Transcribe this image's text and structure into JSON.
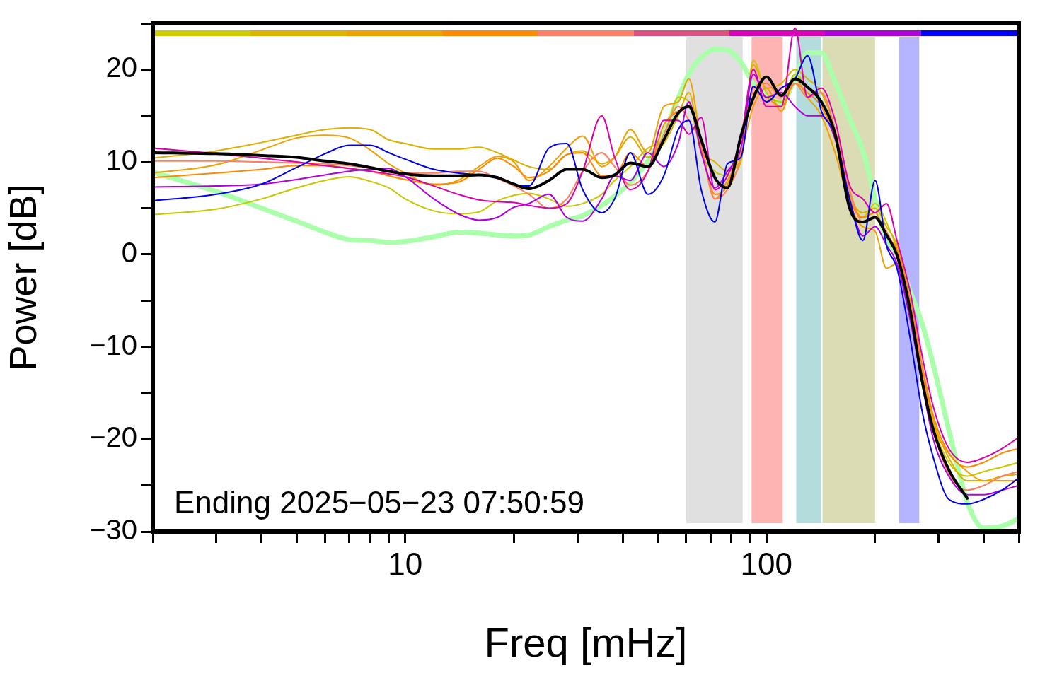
{
  "chart_data": {
    "type": "line",
    "xlabel": "Freq [mHz]",
    "ylabel": "Power [dB]",
    "log": "x",
    "grid": false,
    "legend": false,
    "marker": "none",
    "line_style": "solid",
    "xlim": [
      2,
      500
    ],
    "ylim": [
      -30,
      25
    ],
    "xticks": [
      {
        "value": 2,
        "label": null
      },
      {
        "value": 3,
        "label": null
      },
      {
        "value": 4,
        "label": null
      },
      {
        "value": 5,
        "label": null
      },
      {
        "value": 6,
        "label": null
      },
      {
        "value": 7,
        "label": null
      },
      {
        "value": 8,
        "label": null
      },
      {
        "value": 9,
        "label": null
      },
      10,
      {
        "value": 20,
        "label": null
      },
      {
        "value": 30,
        "label": null
      },
      {
        "value": 40,
        "label": null
      },
      {
        "value": 50,
        "label": null
      },
      {
        "value": 60,
        "label": null
      },
      {
        "value": 70,
        "label": null
      },
      {
        "value": 80,
        "label": null
      },
      {
        "value": 90,
        "label": null
      },
      100,
      {
        "value": 200,
        "label": null
      },
      {
        "value": 300,
        "label": null
      },
      {
        "value": 400,
        "label": null
      },
      {
        "value": 500,
        "label": null
      }
    ],
    "yticks": [
      {
        "value": -30,
        "label": "−30"
      },
      {
        "value": -25,
        "label": null
      },
      {
        "value": -20,
        "label": "−20"
      },
      {
        "value": -15,
        "label": null
      },
      {
        "value": -10,
        "label": "−10"
      },
      {
        "value": -5,
        "label": null
      },
      0,
      {
        "value": 5,
        "label": null
      },
      10,
      {
        "value": 15,
        "label": null
      },
      20,
      {
        "value": 25,
        "label": null
      }
    ],
    "x": [
      2,
      3,
      4,
      5,
      6,
      7,
      8,
      9,
      10,
      12,
      14,
      16,
      18,
      20,
      22,
      25,
      28,
      31,
      35,
      38,
      42,
      47,
      52,
      57,
      61,
      66,
      72,
      78,
      85,
      92,
      100,
      110,
      120,
      130,
      142,
      155,
      170,
      185,
      200,
      215,
      230,
      250,
      270,
      290,
      320,
      360,
      400,
      450,
      500
    ],
    "bands": [
      {
        "axis": "x",
        "from": 60,
        "to": 86,
        "color": "#e0e0e0"
      },
      {
        "axis": "x",
        "from": 91,
        "to": 111,
        "color": "#ffb4b4"
      },
      {
        "axis": "x",
        "from": 121,
        "to": 142,
        "color": "#b4dcdc"
      },
      {
        "axis": "x",
        "from": 143,
        "to": 200,
        "color": "#dcdcb4"
      },
      {
        "axis": "x",
        "from": 233,
        "to": 265,
        "color": "#b4b4ff"
      }
    ],
    "annotations": [
      "Ending 2025−05−23 07:50:59"
    ],
    "series": [
      {
        "color": "#aaffaa",
        "values": [
          8.9,
          6.8,
          5.0,
          3.6,
          2.4,
          1.6,
          1.5,
          1.3,
          1.4,
          1.9,
          2.4,
          2.3,
          2.1,
          2.0,
          2.1,
          3.0,
          3.7,
          4.2,
          5.3,
          6.3,
          7.8,
          10.1,
          13.1,
          16.9,
          19.5,
          21.3,
          22.2,
          22.1,
          20.8,
          18.5,
          17.2,
          16.4,
          19.0,
          21.8,
          21.8,
          18.6,
          14.7,
          11.2,
          6.0,
          1.5,
          0,
          -4,
          -7.5,
          -12,
          -19,
          -26.8,
          -29.6,
          -29.4,
          -28.6
        ]
      },
      {
        "color": "#c8c800",
        "values": [
          4.3,
          4.9,
          6.0,
          7.2,
          8.0,
          8.4,
          7.9,
          7.2,
          6.0,
          4.7,
          4.4,
          4.6,
          5.8,
          6.4,
          6.6,
          6.0,
          5.2,
          5.5,
          6.5,
          8.0,
          9.5,
          11.5,
          12.5,
          17.0,
          16.5,
          11.0,
          9.0,
          8.5,
          10.0,
          21.0,
          17.5,
          16.5,
          19.5,
          18.0,
          16.5,
          13.0,
          6.5,
          4.0,
          5.5,
          3.5,
          0.5,
          -5.5,
          -12.5,
          -18.5,
          -22.5,
          -24.0,
          -23.5,
          -23.0,
          -22.5
        ]
      },
      {
        "color": "#ddb000",
        "values": [
          10.4,
          11.2,
          12.1,
          12.9,
          13.5,
          13.7,
          13.5,
          12.4,
          12.0,
          11.4,
          11.4,
          11.6,
          11.0,
          10.2,
          9.5,
          9.2,
          10.8,
          11.2,
          9.8,
          10.5,
          12.7,
          10.5,
          12.0,
          15.0,
          17.5,
          11.5,
          10.0,
          9.0,
          10.5,
          20.5,
          18.0,
          18.5,
          20.0,
          19.0,
          17.5,
          13.5,
          6.5,
          4.5,
          5.0,
          3.0,
          1.0,
          -5.0,
          -12.5,
          -18.0,
          -22.0,
          -24.5,
          -24.5,
          -24.0,
          -23.8
        ]
      },
      {
        "color": "#f0a000",
        "values": [
          8.8,
          9.7,
          11.3,
          12.6,
          12.9,
          12.6,
          11.3,
          9.8,
          8.8,
          7.5,
          8.0,
          9.5,
          10.6,
          10.0,
          8.0,
          9.5,
          11.5,
          12.8,
          9.5,
          10.5,
          13.5,
          11.0,
          16.0,
          16.5,
          19.0,
          12.0,
          6.0,
          8.0,
          11.0,
          16.0,
          18.0,
          15.5,
          19.0,
          17.0,
          15.0,
          11.0,
          5.5,
          3.0,
          2.5,
          -1.5,
          -1.0,
          -6.5,
          -13.0,
          -18.5,
          -21.5,
          -23.5,
          -24.5,
          -24.5,
          -24.5
        ]
      },
      {
        "color": "#ff8800",
        "values": [
          8.3,
          8.8,
          9.2,
          9.6,
          9.6,
          9.3,
          9.0,
          8.5,
          8.1,
          7.6,
          7.8,
          9.2,
          10.4,
          9.5,
          8.3,
          9.0,
          10.8,
          11.0,
          8.5,
          8.5,
          11.0,
          9.5,
          14.0,
          15.5,
          16.0,
          11.5,
          6.5,
          7.5,
          12.5,
          17.5,
          17.0,
          16.0,
          18.5,
          17.5,
          16.0,
          12.5,
          6.0,
          4.0,
          4.5,
          2.0,
          0.5,
          -5.0,
          -12.0,
          -17.5,
          -21.5,
          -23.0,
          -22.5,
          -21.5,
          -21.0
        ]
      },
      {
        "color": "#ff7f60",
        "values": [
          10.1,
          10.1,
          10.0,
          9.9,
          9.8,
          9.6,
          9.3,
          8.9,
          8.8,
          8.8,
          9.0,
          9.0,
          8.2,
          7.4,
          6.5,
          5.0,
          6.0,
          9.0,
          11.0,
          9.5,
          7.5,
          9.0,
          13.0,
          16.0,
          14.5,
          12.0,
          6.0,
          7.0,
          10.5,
          18.0,
          18.5,
          17.0,
          18.5,
          17.0,
          17.5,
          13.5,
          7.0,
          3.5,
          4.0,
          2.5,
          0.0,
          -5.5,
          -13.0,
          -19.0,
          -23.7,
          -25.5,
          -25.0,
          -24.0,
          -23.5
        ]
      },
      {
        "color": "#dd00aa",
        "values": [
          11.5,
          10.9,
          10.4,
          10.0,
          9.6,
          9.3,
          9.0,
          8.7,
          8.4,
          7.4,
          6.5,
          5.9,
          5.7,
          5.6,
          5.3,
          5.0,
          5.5,
          9.0,
          15.0,
          10.5,
          7.0,
          9.0,
          14.5,
          14.5,
          13.0,
          14.8,
          7.0,
          8.5,
          12.5,
          20.0,
          16.0,
          16.0,
          24.5,
          17.0,
          18.0,
          14.5,
          7.5,
          6.0,
          4.5,
          5.5,
          1.5,
          -4.0,
          -11.0,
          -16.5,
          -21.0,
          -22.5,
          -22.0,
          -21.0,
          -19.8
        ]
      },
      {
        "color": "#b000dd",
        "values": [
          7.3,
          7.4,
          7.6,
          8.1,
          8.6,
          9.0,
          9.2,
          9.3,
          8.4,
          6.0,
          4.4,
          3.7,
          4.0,
          5.1,
          5.5,
          6.5,
          4.0,
          3.6,
          6.0,
          8.5,
          8.0,
          11.0,
          9.5,
          12.0,
          16.5,
          11.0,
          7.2,
          9.0,
          11.5,
          19.5,
          17.0,
          17.5,
          16.0,
          15.0,
          15.0,
          12.5,
          6.0,
          2.0,
          3.0,
          1.0,
          -1.0,
          -7.0,
          -14.0,
          -20.0,
          -24.0,
          -26.0,
          -26.0,
          -25.5,
          -25.0
        ]
      },
      {
        "color": "#0000ee",
        "values": [
          5.8,
          6.5,
          7.6,
          9.4,
          10.9,
          11.8,
          11.8,
          11.0,
          10.3,
          9.2,
          8.8,
          8.6,
          8.4,
          7.6,
          7.4,
          11.5,
          12.0,
          7.0,
          4.5,
          6.0,
          11.0,
          6.5,
          8.5,
          13.5,
          14.5,
          7.0,
          3.5,
          9.8,
          10.5,
          18.2,
          16.5,
          18.0,
          19.0,
          21.5,
          15.5,
          13.0,
          6.0,
          1.5,
          8.0,
          1.0,
          -1.5,
          -9.0,
          -17.0,
          -22.0,
          -26.5,
          -27.0,
          -26.5,
          -25.5,
          -24.2
        ]
      },
      {
        "color": "#000000",
        "values": [
          11.0,
          10.9,
          10.7,
          10.5,
          10.1,
          9.8,
          9.4,
          9.0,
          8.7,
          8.5,
          8.5,
          8.6,
          8.3,
          7.6,
          7.1,
          8.0,
          9.2,
          9.2,
          8.3,
          8.6,
          9.9,
          9.5,
          12.4,
          15.3,
          16.0,
          12.4,
          8.3,
          7.2,
          12.8,
          16.9,
          19.2,
          17.2,
          19.0,
          18.1,
          16.5,
          13.0,
          5.0,
          3.5,
          4.0,
          2.1,
          -0.1,
          -6.0,
          -13.7,
          -19.0,
          -23.3,
          -26.4,
          null,
          null,
          null
        ]
      }
    ]
  }
}
